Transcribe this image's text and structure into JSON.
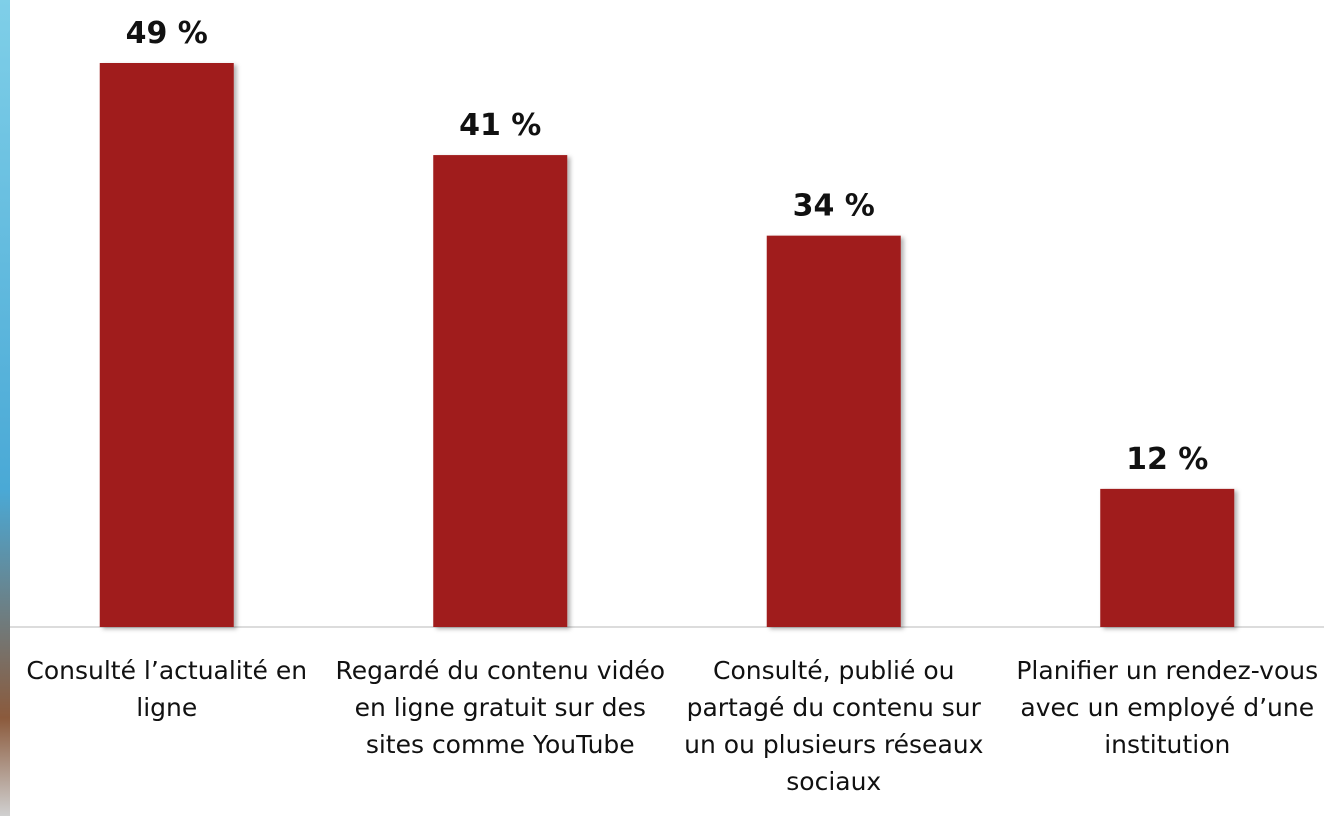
{
  "chart_data": {
    "type": "bar",
    "categories": [
      "Consulté l’actualité en ligne",
      "Regardé du contenu vidéo en ligne gratuit sur des sites comme YouTube",
      "Consulté, publié ou partagé du contenu sur un ou plusieurs réseaux sociaux",
      "Planifier un rendez-vous avec un employé d’une institution"
    ],
    "values": [
      49,
      41,
      34,
      12
    ],
    "value_labels": [
      "49 %",
      "41 %",
      "34 %",
      "12 %"
    ],
    "color": "#a01c1a"
  }
}
